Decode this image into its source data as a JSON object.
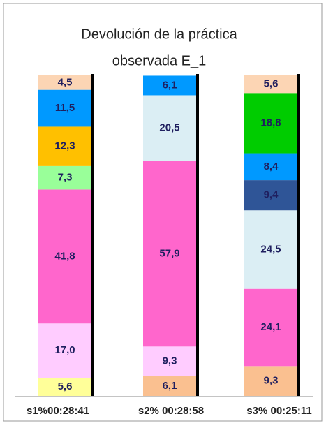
{
  "chart_data": {
    "type": "stacked_bar",
    "title": [
      "Devolución de la práctica",
      "observada E_1"
    ],
    "categories": [
      "s1%00:28:41",
      "s2% 00:28:58",
      "s3% 00:25:11"
    ],
    "ylim": [
      0,
      100
    ],
    "series": [
      {
        "color": "#ffff99",
        "values": [
          5.6,
          null,
          null
        ],
        "value_labels": [
          "5,6",
          null,
          null
        ]
      },
      {
        "color": "#fac090",
        "values": [
          null,
          6.1,
          9.3
        ],
        "value_labels": [
          null,
          "6,1",
          "9,3"
        ]
      },
      {
        "color": "#ffccff",
        "values": [
          17.0,
          9.3,
          null
        ],
        "value_labels": [
          "17,0",
          "9,3",
          null
        ]
      },
      {
        "color": "#ff66cc",
        "values": [
          41.8,
          57.9,
          24.1
        ],
        "value_labels": [
          "41,8",
          "57,9",
          "24,1"
        ]
      },
      {
        "color": "#dbeef4",
        "values": [
          null,
          20.5,
          24.5
        ],
        "value_labels": [
          null,
          "20,5",
          "24,5"
        ]
      },
      {
        "color": "#99ff99",
        "values": [
          7.3,
          null,
          null
        ],
        "value_labels": [
          "7,3",
          null,
          null
        ]
      },
      {
        "color": "#ffc000",
        "values": [
          12.3,
          null,
          null
        ],
        "value_labels": [
          "12,3",
          null,
          null
        ]
      },
      {
        "color": "#2f5597",
        "values": [
          null,
          null,
          9.4
        ],
        "value_labels": [
          null,
          null,
          "9,4"
        ]
      },
      {
        "color": "#0099ff",
        "values": [
          11.5,
          6.1,
          8.4
        ],
        "value_labels": [
          "11,5",
          "6,1",
          "8,4"
        ]
      },
      {
        "color": "#00cc00",
        "values": [
          null,
          null,
          18.8
        ],
        "value_labels": [
          null,
          null,
          "18,8"
        ]
      },
      {
        "color": "#fcd5b4",
        "values": [
          4.5,
          null,
          5.6
        ],
        "value_labels": [
          "4,5",
          null,
          "5,6"
        ]
      }
    ]
  }
}
